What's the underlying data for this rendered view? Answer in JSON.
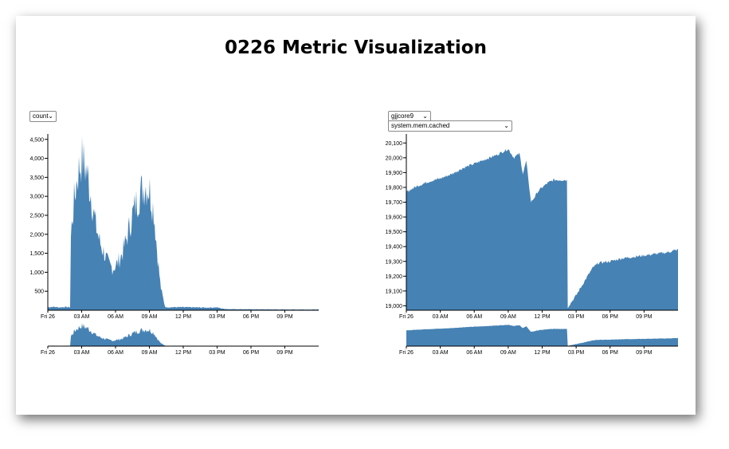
{
  "page": {
    "title": "0226 Metric Visualization"
  },
  "controls": {
    "left_select": {
      "value": "count"
    },
    "host_select": {
      "value": "gjjcore9"
    },
    "metric_select": {
      "value": "system.mem.cached"
    }
  },
  "colors": {
    "fill": "#4682b4",
    "axis": "#000000"
  },
  "chart_data": [
    {
      "type": "area",
      "x_ticks": [
        "Fri 26",
        "03 AM",
        "06 AM",
        "09 AM",
        "12 PM",
        "03 PM",
        "06 PM",
        "09 PM"
      ],
      "y_ticks": [
        "500",
        "1,000",
        "1,500",
        "2,000",
        "2,500",
        "3,000",
        "3,500",
        "4,000",
        "4,500"
      ],
      "ylim": [
        0,
        4600
      ],
      "xlim_hours": [
        0,
        24
      ],
      "x_hours": [
        0,
        0.5,
        1,
        1.5,
        2,
        2.05,
        2.3,
        2.6,
        3.0,
        3.4,
        3.8,
        4.2,
        4.6,
        5.0,
        5.4,
        5.8,
        6.2,
        6.6,
        7.0,
        7.4,
        7.8,
        8.2,
        8.6,
        9.0,
        9.4,
        9.7,
        10.0,
        10.4,
        12,
        13,
        14,
        15,
        15.5,
        16,
        18,
        21,
        24
      ],
      "values": [
        80,
        90,
        75,
        85,
        80,
        2000,
        2800,
        3500,
        4000,
        3700,
        3100,
        2300,
        1800,
        1500,
        1200,
        1100,
        1250,
        1500,
        1900,
        2400,
        2800,
        3100,
        3300,
        3200,
        2600,
        1500,
        600,
        80,
        80,
        75,
        70,
        75,
        40,
        30,
        25,
        20,
        20
      ],
      "brush": {
        "x_ticks": [
          "Fri 26",
          "03 AM",
          "06 AM",
          "09 AM",
          "12 PM",
          "03 PM",
          "06 PM",
          "09 PM"
        ]
      }
    },
    {
      "type": "area",
      "x_ticks": [
        "Fri 26",
        "03 AM",
        "06 AM",
        "09 AM",
        "12 PM",
        "03 PM",
        "06 PM",
        "09 PM"
      ],
      "y_ticks": [
        "19,000",
        "19,100",
        "19,200",
        "19,300",
        "19,400",
        "19,500",
        "19,600",
        "19,700",
        "19,800",
        "19,900",
        "20,000",
        "20,100"
      ],
      "ylim": [
        18970,
        20150
      ],
      "xlim_hours": [
        0,
        24
      ],
      "x_hours": [
        0,
        1,
        2,
        3,
        4,
        5,
        6,
        7,
        8,
        9,
        9.5,
        10,
        10.3,
        10.6,
        11,
        11.3,
        11.6,
        12,
        12.5,
        13,
        14.2,
        14.25,
        15,
        16,
        16.5,
        17,
        18,
        19,
        20,
        21,
        22,
        23,
        24
      ],
      "values": [
        19770,
        19810,
        19840,
        19860,
        19890,
        19930,
        19960,
        19990,
        20020,
        20060,
        20000,
        20030,
        19890,
        19980,
        19700,
        19730,
        19770,
        19800,
        19830,
        19850,
        19850,
        18990,
        19070,
        19200,
        19260,
        19290,
        19300,
        19320,
        19330,
        19340,
        19350,
        19360,
        19380
      ],
      "brush": {
        "x_ticks": [
          "Fri 26",
          "03 AM",
          "06 AM",
          "09 AM",
          "12 PM",
          "03 PM",
          "06 PM",
          "09 PM"
        ]
      }
    }
  ]
}
